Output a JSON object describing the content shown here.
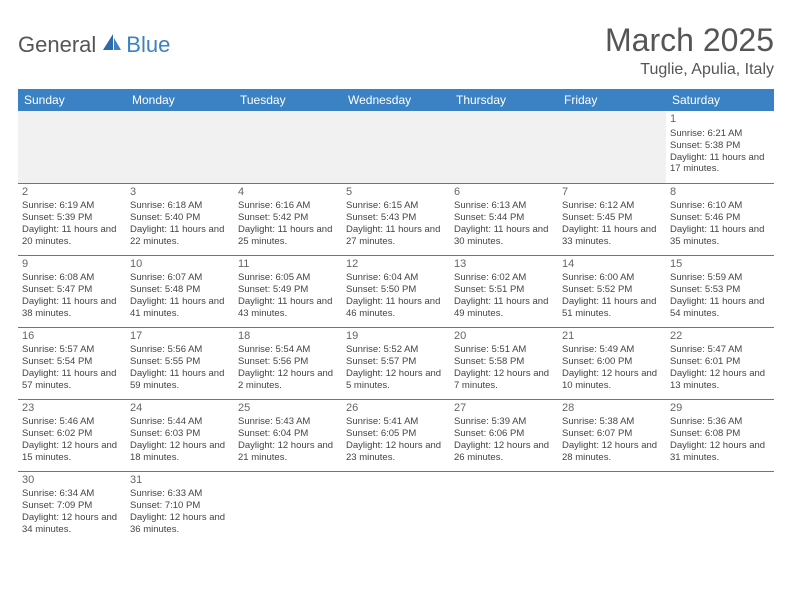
{
  "brand": {
    "part1": "General",
    "part2": "Blue"
  },
  "title": "March 2025",
  "location": "Tuglie, Apulia, Italy",
  "colors": {
    "header_bg": "#3a82c4",
    "header_text": "#ffffff",
    "grid_line": "#3a82c4",
    "body_text": "#444444",
    "title_text": "#555555",
    "empty_bg": "#f1f1f1",
    "page_bg": "#ffffff"
  },
  "typography": {
    "title_fontsize": 32,
    "location_fontsize": 16,
    "weekday_fontsize": 12,
    "cell_fontsize": 9.5,
    "daynum_fontsize": 11
  },
  "weekdays": [
    "Sunday",
    "Monday",
    "Tuesday",
    "Wednesday",
    "Thursday",
    "Friday",
    "Saturday"
  ],
  "weeks": [
    [
      null,
      null,
      null,
      null,
      null,
      null,
      {
        "d": "1",
        "sr": "Sunrise: 6:21 AM",
        "ss": "Sunset: 5:38 PM",
        "dl": "Daylight: 11 hours and 17 minutes."
      }
    ],
    [
      {
        "d": "2",
        "sr": "Sunrise: 6:19 AM",
        "ss": "Sunset: 5:39 PM",
        "dl": "Daylight: 11 hours and 20 minutes."
      },
      {
        "d": "3",
        "sr": "Sunrise: 6:18 AM",
        "ss": "Sunset: 5:40 PM",
        "dl": "Daylight: 11 hours and 22 minutes."
      },
      {
        "d": "4",
        "sr": "Sunrise: 6:16 AM",
        "ss": "Sunset: 5:42 PM",
        "dl": "Daylight: 11 hours and 25 minutes."
      },
      {
        "d": "5",
        "sr": "Sunrise: 6:15 AM",
        "ss": "Sunset: 5:43 PM",
        "dl": "Daylight: 11 hours and 27 minutes."
      },
      {
        "d": "6",
        "sr": "Sunrise: 6:13 AM",
        "ss": "Sunset: 5:44 PM",
        "dl": "Daylight: 11 hours and 30 minutes."
      },
      {
        "d": "7",
        "sr": "Sunrise: 6:12 AM",
        "ss": "Sunset: 5:45 PM",
        "dl": "Daylight: 11 hours and 33 minutes."
      },
      {
        "d": "8",
        "sr": "Sunrise: 6:10 AM",
        "ss": "Sunset: 5:46 PM",
        "dl": "Daylight: 11 hours and 35 minutes."
      }
    ],
    [
      {
        "d": "9",
        "sr": "Sunrise: 6:08 AM",
        "ss": "Sunset: 5:47 PM",
        "dl": "Daylight: 11 hours and 38 minutes."
      },
      {
        "d": "10",
        "sr": "Sunrise: 6:07 AM",
        "ss": "Sunset: 5:48 PM",
        "dl": "Daylight: 11 hours and 41 minutes."
      },
      {
        "d": "11",
        "sr": "Sunrise: 6:05 AM",
        "ss": "Sunset: 5:49 PM",
        "dl": "Daylight: 11 hours and 43 minutes."
      },
      {
        "d": "12",
        "sr": "Sunrise: 6:04 AM",
        "ss": "Sunset: 5:50 PM",
        "dl": "Daylight: 11 hours and 46 minutes."
      },
      {
        "d": "13",
        "sr": "Sunrise: 6:02 AM",
        "ss": "Sunset: 5:51 PM",
        "dl": "Daylight: 11 hours and 49 minutes."
      },
      {
        "d": "14",
        "sr": "Sunrise: 6:00 AM",
        "ss": "Sunset: 5:52 PM",
        "dl": "Daylight: 11 hours and 51 minutes."
      },
      {
        "d": "15",
        "sr": "Sunrise: 5:59 AM",
        "ss": "Sunset: 5:53 PM",
        "dl": "Daylight: 11 hours and 54 minutes."
      }
    ],
    [
      {
        "d": "16",
        "sr": "Sunrise: 5:57 AM",
        "ss": "Sunset: 5:54 PM",
        "dl": "Daylight: 11 hours and 57 minutes."
      },
      {
        "d": "17",
        "sr": "Sunrise: 5:56 AM",
        "ss": "Sunset: 5:55 PM",
        "dl": "Daylight: 11 hours and 59 minutes."
      },
      {
        "d": "18",
        "sr": "Sunrise: 5:54 AM",
        "ss": "Sunset: 5:56 PM",
        "dl": "Daylight: 12 hours and 2 minutes."
      },
      {
        "d": "19",
        "sr": "Sunrise: 5:52 AM",
        "ss": "Sunset: 5:57 PM",
        "dl": "Daylight: 12 hours and 5 minutes."
      },
      {
        "d": "20",
        "sr": "Sunrise: 5:51 AM",
        "ss": "Sunset: 5:58 PM",
        "dl": "Daylight: 12 hours and 7 minutes."
      },
      {
        "d": "21",
        "sr": "Sunrise: 5:49 AM",
        "ss": "Sunset: 6:00 PM",
        "dl": "Daylight: 12 hours and 10 minutes."
      },
      {
        "d": "22",
        "sr": "Sunrise: 5:47 AM",
        "ss": "Sunset: 6:01 PM",
        "dl": "Daylight: 12 hours and 13 minutes."
      }
    ],
    [
      {
        "d": "23",
        "sr": "Sunrise: 5:46 AM",
        "ss": "Sunset: 6:02 PM",
        "dl": "Daylight: 12 hours and 15 minutes."
      },
      {
        "d": "24",
        "sr": "Sunrise: 5:44 AM",
        "ss": "Sunset: 6:03 PM",
        "dl": "Daylight: 12 hours and 18 minutes."
      },
      {
        "d": "25",
        "sr": "Sunrise: 5:43 AM",
        "ss": "Sunset: 6:04 PM",
        "dl": "Daylight: 12 hours and 21 minutes."
      },
      {
        "d": "26",
        "sr": "Sunrise: 5:41 AM",
        "ss": "Sunset: 6:05 PM",
        "dl": "Daylight: 12 hours and 23 minutes."
      },
      {
        "d": "27",
        "sr": "Sunrise: 5:39 AM",
        "ss": "Sunset: 6:06 PM",
        "dl": "Daylight: 12 hours and 26 minutes."
      },
      {
        "d": "28",
        "sr": "Sunrise: 5:38 AM",
        "ss": "Sunset: 6:07 PM",
        "dl": "Daylight: 12 hours and 28 minutes."
      },
      {
        "d": "29",
        "sr": "Sunrise: 5:36 AM",
        "ss": "Sunset: 6:08 PM",
        "dl": "Daylight: 12 hours and 31 minutes."
      }
    ],
    [
      {
        "d": "30",
        "sr": "Sunrise: 6:34 AM",
        "ss": "Sunset: 7:09 PM",
        "dl": "Daylight: 12 hours and 34 minutes."
      },
      {
        "d": "31",
        "sr": "Sunrise: 6:33 AM",
        "ss": "Sunset: 7:10 PM",
        "dl": "Daylight: 12 hours and 36 minutes."
      },
      null,
      null,
      null,
      null,
      null
    ]
  ]
}
